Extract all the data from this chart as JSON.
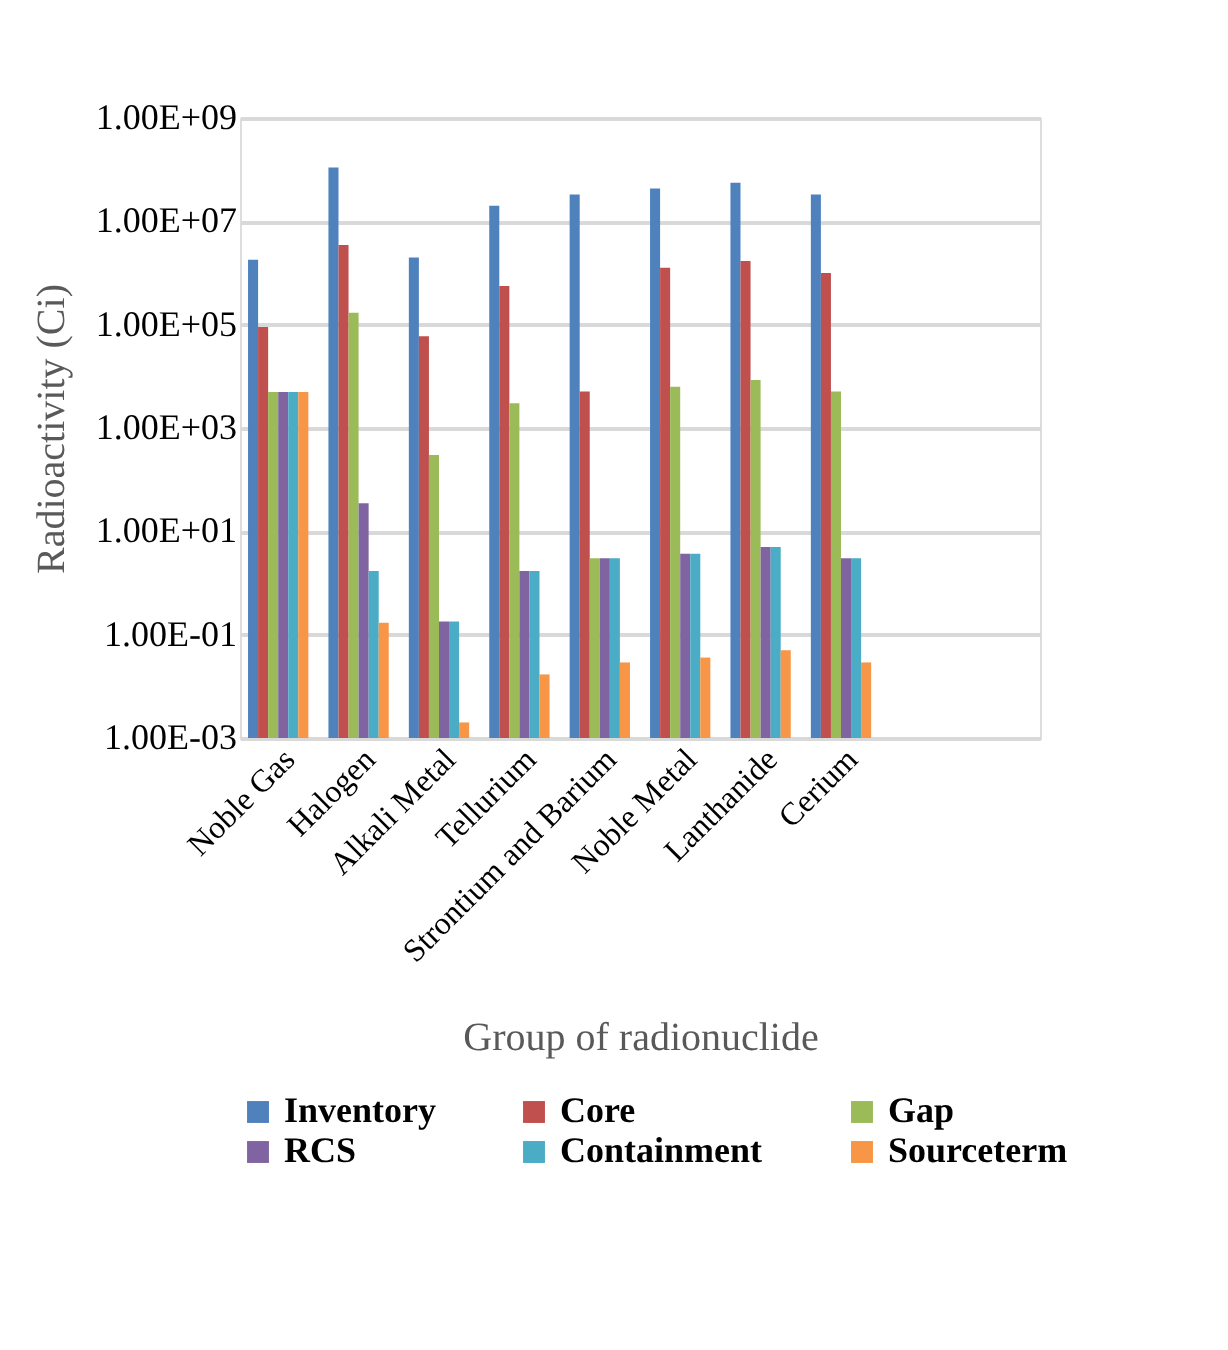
{
  "chart_data": {
    "type": "bar",
    "xlabel": "Group of radionuclide",
    "ylabel": "Radioactivity (Ci)",
    "log": true,
    "categories": [
      "Noble Gas",
      "Halogen",
      "Alkali Metal",
      "Tellurium",
      "Strontium and Barium",
      "Noble Metal",
      "Lanthanide",
      "Cerium",
      null,
      null
    ],
    "series": [
      {
        "name": "Inventory",
        "color": "#4f81bd",
        "values": [
          1800000,
          110000000,
          2000000,
          20000000,
          33000000,
          43000000,
          56000000,
          33000000,
          null,
          null
        ]
      },
      {
        "name": "Core",
        "color": "#c0504d",
        "values": [
          90000,
          3500000,
          60000,
          560000,
          5100,
          1260000,
          1700000,
          1000000,
          null,
          null
        ]
      },
      {
        "name": "Gap",
        "color": "#9bbb59",
        "values": [
          5000,
          170000,
          300,
          3000,
          3,
          6300,
          8500,
          5100,
          null,
          null
        ]
      },
      {
        "name": "RCS",
        "color": "#8064a2",
        "values": [
          5000,
          35,
          0.18,
          1.7,
          3,
          3.7,
          5,
          3,
          null,
          null
        ]
      },
      {
        "name": "Containment",
        "color": "#4bacc6",
        "values": [
          5000,
          1.7,
          0.18,
          1.7,
          3,
          3.7,
          5,
          3,
          null,
          null
        ]
      },
      {
        "name": "Sourceterm",
        "color": "#f79646",
        "values": [
          5000,
          0.17,
          0.002,
          0.017,
          0.029,
          0.036,
          0.05,
          0.029,
          null,
          null
        ]
      }
    ],
    "ylim": [
      0.001,
      1000000000
    ],
    "yticks": [
      {
        "value": 0.001,
        "label": "1.00E-03"
      },
      {
        "value": 0.1,
        "label": "1.00E-01"
      },
      {
        "value": 10,
        "label": "1.00E+01"
      },
      {
        "value": 1000,
        "label": "1.00E+03"
      },
      {
        "value": 100000,
        "label": "1.00E+05"
      },
      {
        "value": 10000000,
        "label": "1.00E+07"
      },
      {
        "value": 1000000000,
        "label": "1.00E+09"
      }
    ],
    "grid": "y",
    "legend": "bottom"
  }
}
